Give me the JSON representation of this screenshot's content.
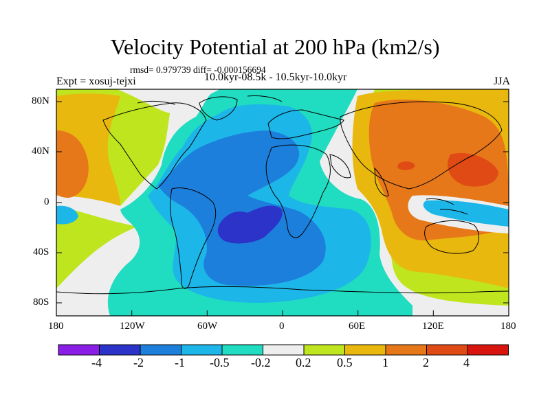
{
  "title": "Velocity Potential at 200 hPa (km2/s)",
  "stats": "rmsd= 0.979739 diff= -0.000156694",
  "experiment": "Expt = xosuj-tejxi",
  "period": "10.0kyr-08.5k - 10.5kyr-10.0kyr",
  "season": "JJA",
  "map": {
    "y_ticks": [
      "80N",
      "40N",
      "0",
      "40S",
      "80S"
    ],
    "x_ticks": [
      "180",
      "120W",
      "60W",
      "0",
      "60E",
      "120E",
      "180"
    ]
  },
  "colorbar": {
    "labels": [
      "-4",
      "-2",
      "-1",
      "-0.5",
      "-0.2",
      "0.2",
      "0.5",
      "1",
      "2",
      "4"
    ],
    "colors": [
      "#8a1ee6",
      "#2b33c8",
      "#1d7fdc",
      "#1cb6e8",
      "#20dcc0",
      "#eeeeee",
      "#bfe51e",
      "#e8b80e",
      "#e67819",
      "#e04a14",
      "#d8140f"
    ]
  }
}
